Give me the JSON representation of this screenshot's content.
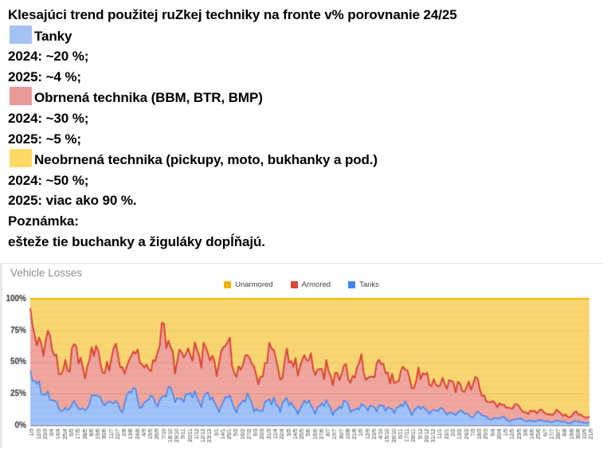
{
  "header": {
    "title": "Klesajúci trend použitej ruZkej techniky na fronte v% porovnanie 24/25",
    "items": [
      {
        "color": "#A4C2F4",
        "label": "Tanky",
        "lines": [
          "2024: ~20 %;",
          "2025: ~4 %;"
        ]
      },
      {
        "color": "#EA9999",
        "label": "Obrnená technika (BBM, BTR, BMP)",
        "lines": [
          "2024: ~30 %;",
          "2025: ~5 %;"
        ]
      },
      {
        "color": "#FFD966",
        "label": "Neobrnená technika (pickupy, moto, bukhanky a pod.)",
        "lines": [
          "2024: ~50 %;",
          "2025: viac ako 90 %."
        ]
      }
    ],
    "note_label": "Poznámka:",
    "note_text": "ešteže tie buchanky a žiguláky dopĺňajú."
  },
  "chart": {
    "title": "Vehicle Losses"
  },
  "chart_data": {
    "type": "area",
    "stacked": true,
    "percent_normalized": true,
    "title": "Vehicle Losses",
    "xlabel": "",
    "ylabel": "",
    "ylim": [
      0,
      100
    ],
    "y_ticks": [
      "100%",
      "75%",
      "50%",
      "25%",
      "0%"
    ],
    "grid": "horizontal, minor every 5%, major every 25%",
    "legend_position": "top-center",
    "x_tick_interval_days": 11,
    "legend": [
      {
        "label": "Unarmored",
        "color": "#F4B400"
      },
      {
        "label": "Armored",
        "color": "#DB4437"
      },
      {
        "label": "Tanks",
        "color": "#4285F4"
      }
    ],
    "x": [
      "1/3",
      "12/3",
      "23/3",
      "3/4",
      "14/4",
      "25/4",
      "6/5",
      "17/5",
      "28/5",
      "8/6",
      "19/6",
      "30/6",
      "11/7",
      "22/7",
      "2/8",
      "13/8",
      "24/8",
      "4/9",
      "15/9",
      "26/9",
      "7/10",
      "18/10",
      "29/10",
      "9/11",
      "20/11",
      "1/12",
      "12/12",
      "23/12",
      "3/1",
      "14/1",
      "25/1",
      "5/2",
      "16/2",
      "27/2",
      "9/3",
      "20/3",
      "31/3",
      "11/4",
      "22/4",
      "3/5",
      "14/5",
      "25/5",
      "5/6",
      "16/6",
      "27/6",
      "8/7",
      "19/7",
      "30/7",
      "10/8",
      "21/8",
      "1/9",
      "12/9",
      "23/9",
      "4/10",
      "15/10",
      "26/10",
      "6/11",
      "17/11",
      "28/11",
      "9/12",
      "20/12",
      "31/12",
      "11/1",
      "22/1",
      "2/2",
      "13/2",
      "24/2",
      "7/3",
      "18/3",
      "29/3",
      "9/4",
      "20/4",
      "1/5",
      "12/5",
      "23/5",
      "3/6",
      "14/6",
      "25/6",
      "6/7",
      "17/7",
      "28/7",
      "8/8",
      "19/8",
      "30/8",
      "10/9",
      "21/9"
    ],
    "series": [
      {
        "name": "Tanks",
        "color": "#4285F4",
        "values": [
          35,
          30,
          32,
          20,
          15,
          14,
          13,
          16,
          14,
          15,
          25,
          22,
          15,
          18,
          14,
          24,
          26,
          16,
          20,
          18,
          24,
          25,
          22,
          24,
          20,
          26,
          20,
          22,
          18,
          15,
          22,
          14,
          18,
          20,
          15,
          12,
          16,
          22,
          14,
          18,
          16,
          12,
          18,
          14,
          15,
          16,
          12,
          14,
          16,
          13,
          15,
          12,
          17,
          14,
          12,
          15,
          13,
          16,
          12,
          14,
          11,
          13,
          12,
          10,
          11,
          9,
          10,
          8,
          9,
          7,
          6,
          5,
          6,
          4,
          5,
          4,
          4,
          3,
          4,
          3,
          3,
          3,
          2,
          3,
          2,
          3
        ]
      },
      {
        "name": "Armored",
        "color": "#DB4437",
        "values": [
          40,
          38,
          40,
          42,
          32,
          38,
          30,
          44,
          36,
          33,
          32,
          28,
          33,
          39,
          30,
          28,
          30,
          32,
          26,
          32,
          49,
          40,
          30,
          33,
          30,
          42,
          35,
          30,
          34,
          42,
          38,
          30,
          34,
          28,
          30,
          28,
          34,
          38,
          26,
          37,
          28,
          36,
          42,
          30,
          25,
          32,
          26,
          22,
          30,
          25,
          33,
          24,
          28,
          34,
          26,
          28,
          22,
          26,
          22,
          28,
          24,
          22,
          24,
          20,
          22,
          25,
          18,
          22,
          28,
          15,
          12,
          10,
          12,
          9,
          10,
          7,
          8,
          6,
          8,
          6,
          7,
          5,
          6,
          7,
          4,
          5
        ]
      },
      {
        "name": "Unarmored",
        "color": "#F4B400",
        "values": [
          25,
          32,
          28,
          38,
          53,
          48,
          57,
          40,
          50,
          52,
          43,
          50,
          52,
          43,
          56,
          48,
          44,
          52,
          54,
          50,
          27,
          35,
          48,
          43,
          50,
          32,
          45,
          48,
          48,
          43,
          40,
          56,
          48,
          52,
          55,
          60,
          50,
          40,
          60,
          45,
          56,
          52,
          40,
          56,
          60,
          52,
          62,
          64,
          54,
          62,
          52,
          64,
          55,
          52,
          62,
          57,
          65,
          58,
          66,
          58,
          65,
          65,
          64,
          70,
          67,
          66,
          72,
          70,
          63,
          78,
          82,
          85,
          82,
          87,
          85,
          89,
          88,
          91,
          88,
          91,
          90,
          92,
          92,
          90,
          94,
          92
        ]
      }
    ]
  }
}
